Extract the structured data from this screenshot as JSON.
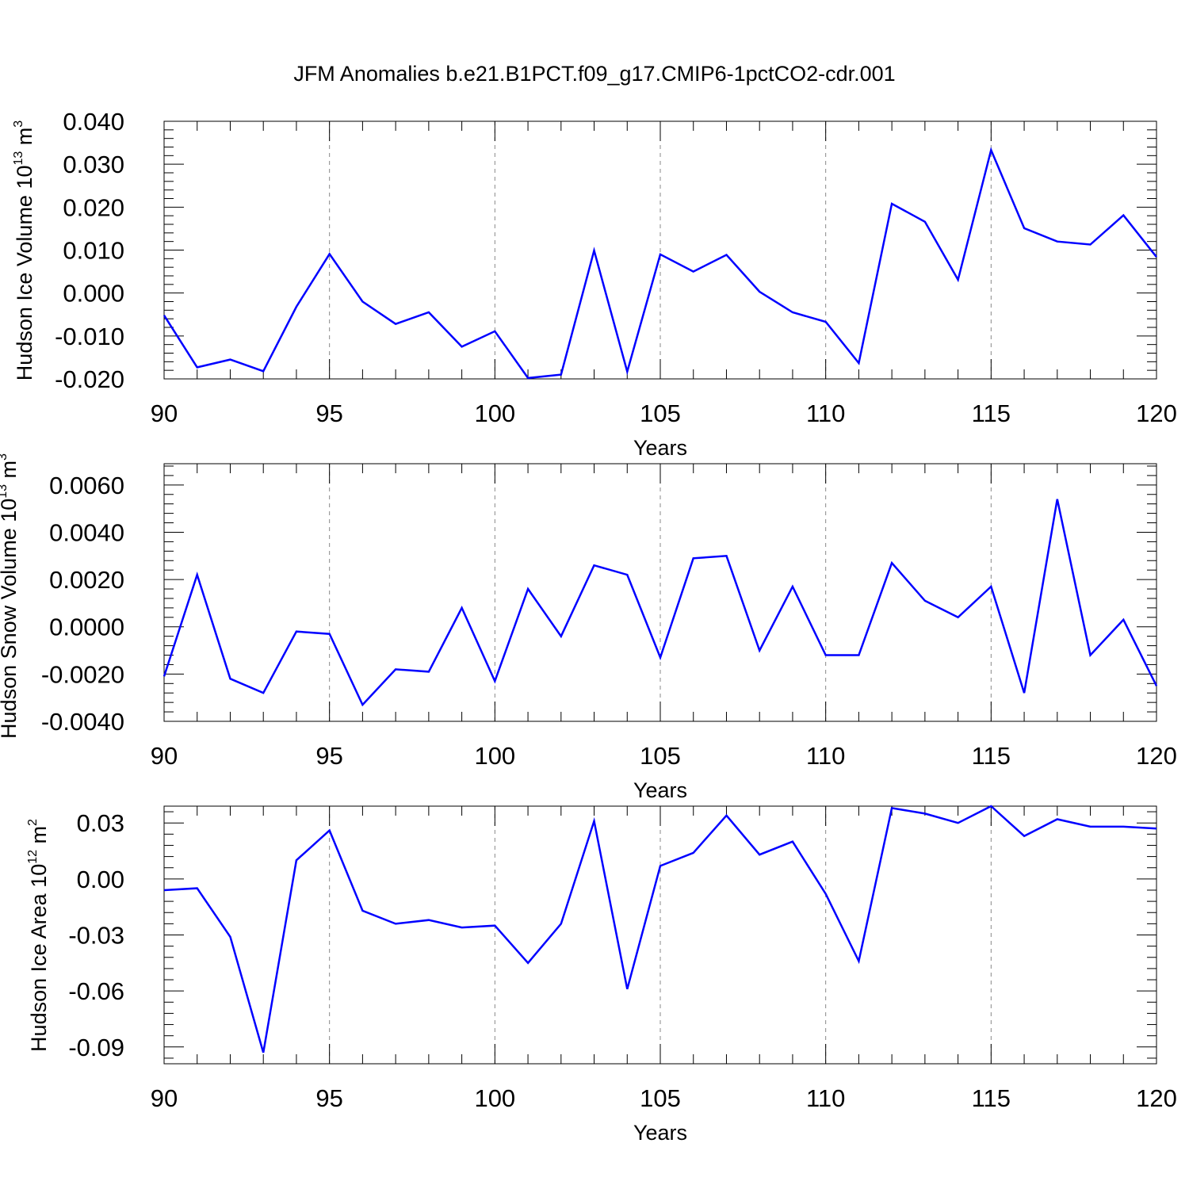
{
  "title": "JFM Anomalies b.e21.B1PCT.f09_g17.CMIP6-1pctCO2-cdr.001",
  "chart_data": [
    {
      "type": "line",
      "ylabel": "Hudson Ice Volume 10",
      "ylabel_exp": "13",
      "ylabel_unit": " m",
      "ylabel_unit_exp": "3",
      "xlabel": "Years",
      "xlim": [
        90,
        120
      ],
      "ylim": [
        -0.02,
        0.04
      ],
      "yticks": [
        -0.02,
        -0.01,
        0.0,
        0.01,
        0.02,
        0.03,
        0.04
      ],
      "ytick_labels": [
        "-0.020",
        "-0.010",
        "0.000",
        "0.010",
        "0.020",
        "0.030",
        "0.040"
      ],
      "xticks": [
        90,
        95,
        100,
        105,
        110,
        115,
        120
      ],
      "xtick_labels": [
        "90",
        "95",
        "100",
        "105",
        "110",
        "115",
        "120"
      ],
      "grid": "vertical dashed at major x ticks",
      "series": [
        {
          "name": "Hudson Ice Volume",
          "color": "#0000ff",
          "x": [
            90,
            91,
            92,
            93,
            94,
            95,
            96,
            97,
            98,
            99,
            100,
            101,
            102,
            103,
            104,
            105,
            106,
            107,
            108,
            109,
            110,
            111,
            112,
            113,
            114,
            115,
            116,
            117,
            118,
            119,
            120
          ],
          "values": [
            -0.0052,
            -0.0173,
            -0.0155,
            -0.0182,
            -0.0032,
            0.0091,
            -0.002,
            -0.0072,
            -0.0045,
            -0.0125,
            -0.0089,
            -0.0198,
            -0.019,
            0.0099,
            -0.0183,
            0.009,
            0.005,
            0.0089,
            0.0003,
            -0.0045,
            -0.0067,
            -0.0163,
            0.0208,
            0.0166,
            0.0031,
            0.0333,
            0.0151,
            0.012,
            0.0113,
            0.0181,
            0.0084
          ]
        }
      ]
    },
    {
      "type": "line",
      "ylabel": "Hudson Snow Volume 10",
      "ylabel_exp": "13",
      "ylabel_unit": " m",
      "ylabel_unit_exp": "3",
      "xlabel": "Years",
      "xlim": [
        90,
        120
      ],
      "ylim": [
        -0.004,
        0.0069
      ],
      "yticks": [
        -0.004,
        -0.002,
        0.0,
        0.002,
        0.004,
        0.006
      ],
      "ytick_labels": [
        "-0.0040",
        "-0.0020",
        "0.0000",
        "0.0020",
        "0.0040",
        "0.0060"
      ],
      "xticks": [
        90,
        95,
        100,
        105,
        110,
        115,
        120
      ],
      "xtick_labels": [
        "90",
        "95",
        "100",
        "105",
        "110",
        "115",
        "120"
      ],
      "grid": "vertical dashed at major x ticks",
      "series": [
        {
          "name": "Hudson Snow Volume",
          "color": "#0000ff",
          "x": [
            90,
            91,
            92,
            93,
            94,
            95,
            96,
            97,
            98,
            99,
            100,
            101,
            102,
            103,
            104,
            105,
            106,
            107,
            108,
            109,
            110,
            111,
            112,
            113,
            114,
            115,
            116,
            117,
            118,
            119,
            120
          ],
          "values": [
            -0.0021,
            0.0022,
            -0.0022,
            -0.0028,
            -0.0002,
            -0.0003,
            -0.0033,
            -0.0018,
            -0.0019,
            0.0008,
            -0.0023,
            0.0016,
            -0.0004,
            0.0026,
            0.0022,
            -0.0013,
            0.0029,
            0.003,
            -0.001,
            0.0017,
            -0.0012,
            -0.0012,
            0.0027,
            0.0011,
            0.0004,
            0.0017,
            -0.0028,
            0.0054,
            -0.0012,
            0.0003,
            -0.0025
          ]
        }
      ]
    },
    {
      "type": "line",
      "ylabel": "Hudson Ice Area 10",
      "ylabel_exp": "12",
      "ylabel_unit": " m",
      "ylabel_unit_exp": "2",
      "xlabel": "Years",
      "xlim": [
        90,
        120
      ],
      "ylim": [
        -0.099,
        0.039
      ],
      "yticks": [
        -0.09,
        -0.06,
        -0.03,
        0.0,
        0.03
      ],
      "ytick_labels": [
        "-0.09",
        "-0.06",
        "-0.03",
        "0.00",
        "0.03"
      ],
      "xticks": [
        90,
        95,
        100,
        105,
        110,
        115,
        120
      ],
      "xtick_labels": [
        "90",
        "95",
        "100",
        "105",
        "110",
        "115",
        "120"
      ],
      "grid": "vertical dashed at major x ticks",
      "series": [
        {
          "name": "Hudson Ice Area",
          "color": "#0000ff",
          "x": [
            90,
            91,
            92,
            93,
            94,
            95,
            96,
            97,
            98,
            99,
            100,
            101,
            102,
            103,
            104,
            105,
            106,
            107,
            108,
            109,
            110,
            111,
            112,
            113,
            114,
            115,
            116,
            117,
            118,
            119,
            120
          ],
          "values": [
            -0.006,
            -0.005,
            -0.031,
            -0.093,
            0.01,
            0.026,
            -0.017,
            -0.024,
            -0.022,
            -0.026,
            -0.025,
            -0.045,
            -0.024,
            0.031,
            -0.059,
            0.007,
            0.014,
            0.034,
            0.013,
            0.02,
            -0.008,
            -0.044,
            0.038,
            0.035,
            0.03,
            0.039,
            0.023,
            0.032,
            0.028,
            0.028,
            0.027
          ]
        }
      ]
    }
  ]
}
